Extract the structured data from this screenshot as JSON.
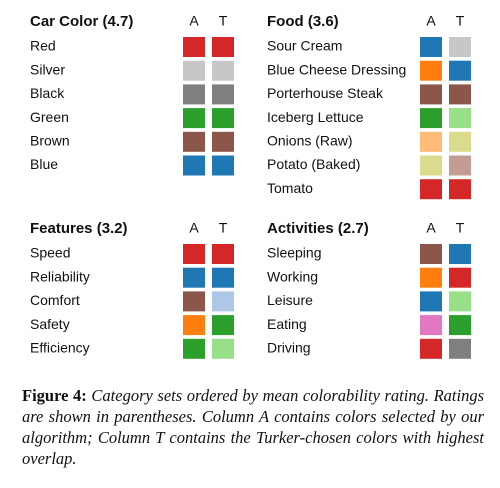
{
  "panels": [
    {
      "title": "Car Color (4.7)",
      "columns": [
        "A",
        "T"
      ],
      "rows": [
        {
          "label": "Red",
          "colors": [
            "#d62728",
            "#d62728"
          ]
        },
        {
          "label": "Silver",
          "colors": [
            "#c7c7c7",
            "#c7c7c7"
          ]
        },
        {
          "label": "Black",
          "colors": [
            "#7f7f7f",
            "#7f7f7f"
          ]
        },
        {
          "label": "Green",
          "colors": [
            "#2ca02c",
            "#2ca02c"
          ]
        },
        {
          "label": "Brown",
          "colors": [
            "#8c564b",
            "#8c564b"
          ]
        },
        {
          "label": "Blue",
          "colors": [
            "#1f77b4",
            "#1f77b4"
          ]
        }
      ]
    },
    {
      "title": "Food (3.6)",
      "columns": [
        "A",
        "T"
      ],
      "rows": [
        {
          "label": "Sour Cream",
          "colors": [
            "#1f77b4",
            "#c7c7c7"
          ]
        },
        {
          "label": "Blue Cheese Dressing",
          "colors": [
            "#ff7f0e",
            "#1f77b4"
          ]
        },
        {
          "label": "Porterhouse Steak",
          "colors": [
            "#8c564b",
            "#8c564b"
          ]
        },
        {
          "label": "Iceberg Lettuce",
          "colors": [
            "#2ca02c",
            "#98df8a"
          ]
        },
        {
          "label": "Onions (Raw)",
          "colors": [
            "#ffbb78",
            "#dbdb8d"
          ]
        },
        {
          "label": "Potato (Baked)",
          "colors": [
            "#dbdb8d",
            "#c49c94"
          ]
        },
        {
          "label": "Tomato",
          "colors": [
            "#d62728",
            "#d62728"
          ]
        }
      ]
    },
    {
      "title": "Features (3.2)",
      "columns": [
        "A",
        "T"
      ],
      "rows": [
        {
          "label": "Speed",
          "colors": [
            "#d62728",
            "#d62728"
          ]
        },
        {
          "label": "Reliability",
          "colors": [
            "#1f77b4",
            "#1f77b4"
          ]
        },
        {
          "label": "Comfort",
          "colors": [
            "#8c564b",
            "#aec7e8"
          ]
        },
        {
          "label": "Safety",
          "colors": [
            "#ff7f0e",
            "#2ca02c"
          ]
        },
        {
          "label": "Efficiency",
          "colors": [
            "#2ca02c",
            "#98df8a"
          ]
        }
      ]
    },
    {
      "title": "Activities (2.7)",
      "columns": [
        "A",
        "T"
      ],
      "rows": [
        {
          "label": "Sleeping",
          "colors": [
            "#8c564b",
            "#1f77b4"
          ]
        },
        {
          "label": "Working",
          "colors": [
            "#ff7f0e",
            "#d62728"
          ]
        },
        {
          "label": "Leisure",
          "colors": [
            "#1f77b4",
            "#98df8a"
          ]
        },
        {
          "label": "Eating",
          "colors": [
            "#e377c2",
            "#2ca02c"
          ]
        },
        {
          "label": "Driving",
          "colors": [
            "#d62728",
            "#7f7f7f"
          ]
        }
      ]
    }
  ],
  "caption": {
    "label": "Figure 4:",
    "text": "Category sets ordered by mean colorability rating. Ratings are shown in parentheses. Column A contains colors selected by our algorithm; Column T contains the Turker-chosen colors with highest overlap."
  }
}
